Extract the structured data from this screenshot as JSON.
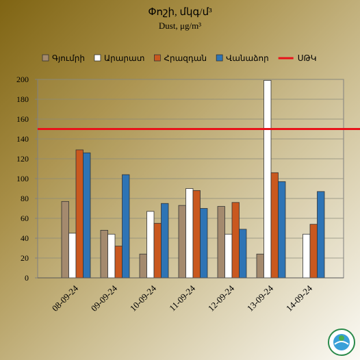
{
  "chart_data": {
    "type": "bar",
    "title": "Փոշի, մկգ/մ³",
    "subtitle": "Dust, μg/m³",
    "categories": [
      "08-09-24",
      "09-09-24",
      "10-09-24",
      "11-09-24",
      "12-09-24",
      "13-09-24",
      "14-09-24"
    ],
    "series": [
      {
        "name": "Գյումրի",
        "color": "#a48a6e",
        "values": [
          77,
          48,
          24,
          73,
          72,
          24,
          null
        ]
      },
      {
        "name": "Արարատ",
        "color": "#ffffff",
        "values": [
          45,
          44,
          67,
          90,
          44,
          199,
          44
        ]
      },
      {
        "name": "Հրազդան",
        "color": "#c9581f",
        "values": [
          129,
          32,
          55,
          88,
          76,
          106,
          54
        ]
      },
      {
        "name": "Վանաձոր",
        "color": "#2e74b5",
        "values": [
          126,
          104,
          75,
          70,
          49,
          97,
          87
        ]
      }
    ],
    "threshold": {
      "name": "ՍԹԿ",
      "value": 150,
      "color": "#e8121a"
    },
    "ylim": [
      0,
      200
    ],
    "yticks": [
      0,
      20,
      40,
      60,
      80,
      100,
      120,
      140,
      160,
      180,
      200
    ],
    "grid": true
  }
}
